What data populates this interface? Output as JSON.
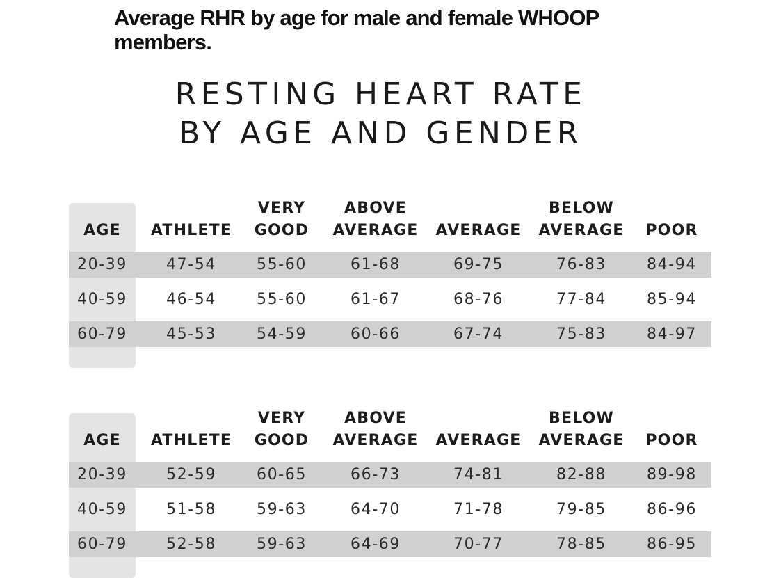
{
  "caption": "Average RHR by age for male and female WHOOP members.",
  "title": {
    "line1": "RESTING HEART RATE",
    "line2": "BY AGE AND GENDER"
  },
  "colors": {
    "row_shade": "#d0d0d0",
    "age_column": "#e4e4e4",
    "text": "#111111"
  },
  "headers": [
    {
      "line1": "",
      "line2": "AGE"
    },
    {
      "line1": "",
      "line2": "ATHLETE"
    },
    {
      "line1": "VERY",
      "line2": "GOOD"
    },
    {
      "line1": "ABOVE",
      "line2": "AVERAGE"
    },
    {
      "line1": "",
      "line2": "AVERAGE"
    },
    {
      "line1": "BELOW",
      "line2": "AVERAGE"
    },
    {
      "line1": "",
      "line2": "POOR"
    }
  ],
  "tables": [
    {
      "rows": [
        [
          "20-39",
          "47-54",
          "55-60",
          "61-68",
          "69-75",
          "76-83",
          "84-94"
        ],
        [
          "40-59",
          "46-54",
          "55-60",
          "61-67",
          "68-76",
          "77-84",
          "85-94"
        ],
        [
          "60-79",
          "45-53",
          "54-59",
          "60-66",
          "67-74",
          "75-83",
          "84-97"
        ]
      ]
    },
    {
      "rows": [
        [
          "20-39",
          "52-59",
          "60-65",
          "66-73",
          "74-81",
          "82-88",
          "89-98"
        ],
        [
          "40-59",
          "51-58",
          "59-63",
          "64-70",
          "71-78",
          "79-85",
          "86-96"
        ],
        [
          "60-79",
          "52-58",
          "59-63",
          "64-69",
          "70-77",
          "78-85",
          "86-95"
        ]
      ]
    }
  ]
}
